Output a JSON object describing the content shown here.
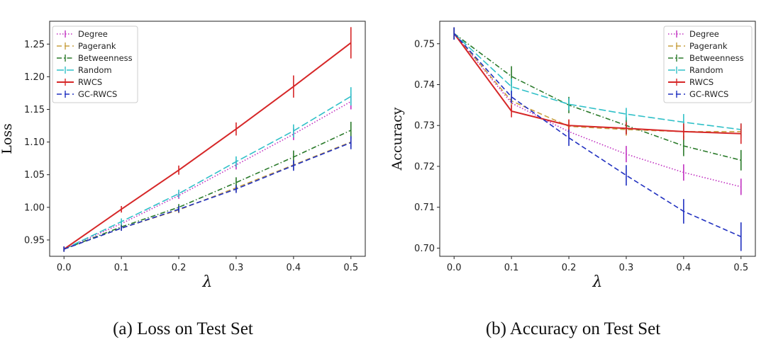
{
  "chart_data": [
    {
      "type": "line",
      "caption": "(a) Loss on Test Set",
      "xlabel": "λ",
      "ylabel": "Loss",
      "x": [
        0.0,
        0.1,
        0.2,
        0.3,
        0.4,
        0.5
      ],
      "xlim": [
        -0.025,
        0.525
      ],
      "ylim": [
        0.925,
        1.285
      ],
      "xticks": [
        "0.0",
        "0.1",
        "0.2",
        "0.3",
        "0.4",
        "0.5"
      ],
      "yticks": [
        "0.95",
        "1.00",
        "1.05",
        "1.10",
        "1.15",
        "1.20",
        "1.25"
      ],
      "legend_position": "top-left",
      "series": [
        {
          "name": "Degree",
          "color": "#c030c0",
          "dash": "dotted",
          "values": [
            0.936,
            0.975,
            1.018,
            1.065,
            1.112,
            1.162
          ],
          "err": [
            0.004,
            0.004,
            0.005,
            0.007,
            0.009,
            0.012
          ]
        },
        {
          "name": "Pagerank",
          "color": "#c8a040",
          "dash": "dashed",
          "values": [
            0.936,
            0.968,
            0.996,
            1.03,
            1.065,
            1.1
          ],
          "err": [
            0.004,
            0.004,
            0.005,
            0.006,
            0.007,
            0.008
          ]
        },
        {
          "name": "Betweenness",
          "color": "#2a7a2a",
          "dash": "dashdot",
          "values": [
            0.936,
            0.97,
            1.0,
            1.038,
            1.077,
            1.118
          ],
          "err": [
            0.004,
            0.004,
            0.005,
            0.008,
            0.01,
            0.013
          ]
        },
        {
          "name": "Random",
          "color": "#30c0c8",
          "dash": "longdash",
          "values": [
            0.936,
            0.978,
            1.021,
            1.07,
            1.117,
            1.17
          ],
          "err": [
            0.004,
            0.005,
            0.006,
            0.008,
            0.01,
            0.014
          ]
        },
        {
          "name": "RWCS",
          "color": "#d62728",
          "dash": "solid",
          "values": [
            0.936,
            0.997,
            1.057,
            1.12,
            1.185,
            1.252
          ],
          "err": [
            0.004,
            0.005,
            0.007,
            0.01,
            0.017,
            0.024
          ]
        },
        {
          "name": "GC-RWCS",
          "color": "#2030c0",
          "dash": "dashed",
          "values": [
            0.936,
            0.968,
            0.997,
            1.028,
            1.064,
            1.099
          ],
          "err": [
            0.004,
            0.004,
            0.005,
            0.006,
            0.008,
            0.01
          ]
        }
      ]
    },
    {
      "type": "line",
      "caption": "(b) Accuracy on Test Set",
      "xlabel": "λ",
      "ylabel": "Accuracy",
      "x": [
        0.0,
        0.1,
        0.2,
        0.3,
        0.4,
        0.5
      ],
      "xlim": [
        -0.025,
        0.525
      ],
      "ylim": [
        0.698,
        0.7555
      ],
      "xticks": [
        "0.0",
        "0.1",
        "0.2",
        "0.3",
        "0.4",
        "0.5"
      ],
      "yticks": [
        "0.70",
        "0.71",
        "0.72",
        "0.73",
        "0.74",
        "0.75"
      ],
      "legend_position": "top-right",
      "series": [
        {
          "name": "Degree",
          "color": "#c030c0",
          "dash": "dotted",
          "values": [
            0.7525,
            0.7355,
            0.7285,
            0.723,
            0.7185,
            0.715
          ],
          "err": [
            0.0015,
            0.0015,
            0.0015,
            0.002,
            0.002,
            0.002
          ]
        },
        {
          "name": "Pagerank",
          "color": "#c8a040",
          "dash": "dashed",
          "values": [
            0.7525,
            0.736,
            0.7298,
            0.729,
            0.7285,
            0.7285
          ],
          "err": [
            0.0015,
            0.0015,
            0.0015,
            0.0015,
            0.0015,
            0.0015
          ]
        },
        {
          "name": "Betweenness",
          "color": "#2a7a2a",
          "dash": "dashdot",
          "values": [
            0.7525,
            0.742,
            0.735,
            0.73,
            0.725,
            0.7215
          ],
          "err": [
            0.0015,
            0.0025,
            0.002,
            0.002,
            0.0025,
            0.0025
          ]
        },
        {
          "name": "Random",
          "color": "#30c0c8",
          "dash": "longdash",
          "values": [
            0.7525,
            0.7395,
            0.7352,
            0.7328,
            0.7308,
            0.729
          ],
          "err": [
            0.0015,
            0.002,
            0.0015,
            0.0015,
            0.002,
            0.0015
          ]
        },
        {
          "name": "RWCS",
          "color": "#d62728",
          "dash": "solid",
          "values": [
            0.7525,
            0.7335,
            0.73,
            0.7293,
            0.7285,
            0.728
          ],
          "err": [
            0.0015,
            0.0015,
            0.0015,
            0.0015,
            0.002,
            0.0025
          ]
        },
        {
          "name": "GC-RWCS",
          "color": "#2030c0",
          "dash": "dashed",
          "values": [
            0.7525,
            0.737,
            0.727,
            0.7178,
            0.709,
            0.7028
          ],
          "err": [
            0.0015,
            0.0015,
            0.002,
            0.0025,
            0.003,
            0.0035
          ]
        }
      ]
    }
  ]
}
